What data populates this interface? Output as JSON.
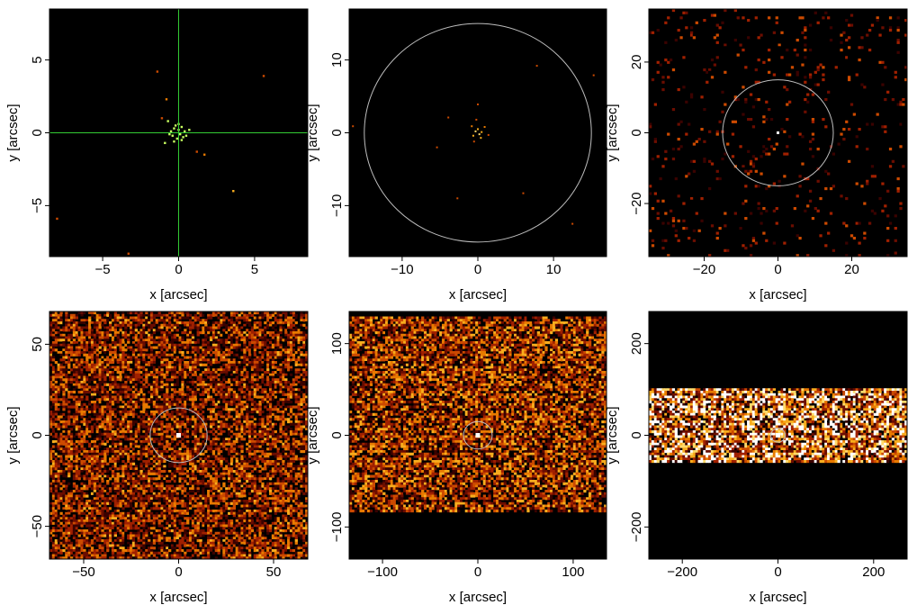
{
  "colors": {
    "background": "#000000",
    "ring": "#bdbdbd",
    "crosshair": "#33cc33",
    "colormap": [
      "#000000",
      "#3a0200",
      "#6b0d00",
      "#a02000",
      "#cc4a00",
      "#e87a00",
      "#f8ad1e",
      "#ffd96a",
      "#ffffff"
    ]
  },
  "chart_data": [
    {
      "type": "heatmap",
      "panel": "top-left",
      "xlabel": "x [arcsec]",
      "ylabel": "y [arcsec]",
      "xlim": [
        -8.5,
        8.5
      ],
      "ylim": [
        -8.5,
        8.5
      ],
      "xticks": [
        -5,
        0,
        5
      ],
      "yticks": [
        -5,
        0,
        5
      ],
      "xtick_labels": [
        "−5",
        "0",
        "5"
      ],
      "ytick_labels": [
        "−5",
        "0",
        "5"
      ],
      "overlay": "crosshair",
      "crosshair_center": [
        0,
        0
      ],
      "source_center": [
        0,
        0
      ],
      "events": [
        [
          -0.5,
          0.1,
          0.95
        ],
        [
          -0.4,
          -0.2,
          0.85
        ],
        [
          -0.3,
          0.3,
          0.9
        ],
        [
          -0.2,
          0.5,
          0.8
        ],
        [
          -0.1,
          -0.4,
          0.9
        ],
        [
          0.0,
          0.2,
          1.0
        ],
        [
          0.1,
          -0.1,
          0.95
        ],
        [
          0.2,
          0.4,
          0.85
        ],
        [
          0.3,
          -0.3,
          0.9
        ],
        [
          0.4,
          0.1,
          0.9
        ],
        [
          0.5,
          -0.2,
          0.8
        ],
        [
          0.2,
          -0.5,
          0.75
        ],
        [
          -0.6,
          -0.1,
          0.7
        ],
        [
          0.7,
          0.2,
          0.7
        ],
        [
          -0.3,
          -0.6,
          0.7
        ],
        [
          0.0,
          0.6,
          0.75
        ],
        [
          -0.8,
          2.3,
          0.6
        ],
        [
          1.7,
          -1.5,
          0.6
        ],
        [
          -1.1,
          1.0,
          0.55
        ],
        [
          3.6,
          -4.0,
          0.7
        ],
        [
          5.6,
          3.9,
          0.5
        ],
        [
          -1.4,
          4.2,
          0.5
        ],
        [
          -8.0,
          -5.9,
          0.5
        ],
        [
          -3.3,
          -8.3,
          0.5
        ],
        [
          -0.9,
          -0.7,
          0.6
        ],
        [
          1.2,
          -1.3,
          0.5
        ],
        [
          -0.7,
          0.8,
          0.55
        ]
      ]
    },
    {
      "type": "heatmap",
      "panel": "top-middle",
      "xlabel": "x [arcsec]",
      "ylabel": "y [arcsec]",
      "xlim": [
        -17,
        17
      ],
      "ylim": [
        -17,
        17
      ],
      "xticks": [
        -10,
        0,
        10
      ],
      "yticks": [
        -10,
        0,
        10
      ],
      "xtick_labels": [
        "−10",
        "0",
        "10"
      ],
      "ytick_labels": [
        "−10",
        "0",
        "10"
      ],
      "overlay": "circle",
      "circle_radius": 15,
      "source_center": [
        0,
        0
      ],
      "events": [
        [
          -0.3,
          0.2,
          0.9
        ],
        [
          0.2,
          -0.2,
          0.85
        ],
        [
          0.0,
          0.5,
          0.8
        ],
        [
          0.5,
          0.1,
          0.8
        ],
        [
          -0.6,
          -0.4,
          0.7
        ],
        [
          0.4,
          -0.7,
          0.7
        ],
        [
          -0.8,
          0.9,
          0.6
        ],
        [
          0.9,
          0.8,
          0.6
        ],
        [
          -0.2,
          1.8,
          0.5
        ],
        [
          1.4,
          -0.3,
          0.5
        ],
        [
          -0.5,
          -1.2,
          0.55
        ],
        [
          0.0,
          3.9,
          0.5
        ],
        [
          -5.4,
          -2.0,
          0.5
        ],
        [
          -2.7,
          -9.0,
          0.5
        ],
        [
          6.0,
          -8.3,
          0.45
        ],
        [
          7.8,
          9.2,
          0.45
        ],
        [
          -16.5,
          0.9,
          0.5
        ],
        [
          15.3,
          7.9,
          0.45
        ],
        [
          -3.9,
          2.1,
          0.45
        ],
        [
          12.5,
          -12.5,
          0.45
        ]
      ]
    },
    {
      "type": "heatmap",
      "panel": "top-right",
      "xlabel": "x [arcsec]",
      "ylabel": "y [arcsec]",
      "xlim": [
        -35,
        35
      ],
      "ylim": [
        -35,
        35
      ],
      "xticks": [
        -20,
        0,
        20
      ],
      "yticks": [
        -20,
        0,
        20
      ],
      "xtick_labels": [
        "−20",
        "0",
        "20"
      ],
      "ytick_labels": [
        "−20",
        "0",
        "20"
      ],
      "overlay": "circle",
      "circle_radius": 15,
      "source_center": [
        0,
        0
      ],
      "background_density": 0.06,
      "background_brightness": 0.35
    },
    {
      "type": "heatmap",
      "panel": "bottom-left",
      "xlabel": "x [arcsec]",
      "ylabel": "y [arcsec]",
      "xlim": [
        -68,
        68
      ],
      "ylim": [
        -68,
        68
      ],
      "xticks": [
        -50,
        0,
        50
      ],
      "yticks": [
        -50,
        0,
        50
      ],
      "xtick_labels": [
        "−50",
        "0",
        "50"
      ],
      "ytick_labels": [
        "−50",
        "0",
        "50"
      ],
      "overlay": "circle",
      "circle_radius": 15,
      "source_center": [
        0,
        0
      ],
      "background_density": 0.75,
      "background_brightness": 0.45,
      "band": [
        -68,
        68
      ]
    },
    {
      "type": "heatmap",
      "panel": "bottom-middle",
      "xlabel": "x [arcsec]",
      "ylabel": "y [arcsec]",
      "xlim": [
        -135,
        135
      ],
      "ylim": [
        -135,
        135
      ],
      "xticks": [
        -100,
        0,
        100
      ],
      "yticks": [
        -100,
        0,
        100
      ],
      "xtick_labels": [
        "−100",
        "0",
        "100"
      ],
      "ytick_labels": [
        "−100",
        "0",
        "100"
      ],
      "overlay": "circle",
      "circle_radius": 15,
      "source_center": [
        0,
        0
      ],
      "background_density": 0.8,
      "background_brightness": 0.5,
      "band": [
        -85,
        130
      ]
    },
    {
      "type": "heatmap",
      "panel": "bottom-right",
      "xlabel": "x [arcsec]",
      "ylabel": "y [arcsec]",
      "xlim": [
        -270,
        270
      ],
      "ylim": [
        -270,
        270
      ],
      "xticks": [
        -200,
        0,
        200
      ],
      "yticks": [
        -200,
        0,
        200
      ],
      "xtick_labels": [
        "−200",
        "0",
        "200"
      ],
      "ytick_labels": [
        "−200",
        "0",
        "200"
      ],
      "overlay": "circle",
      "circle_radius": 15,
      "source_center": [
        0,
        0
      ],
      "background_density": 0.9,
      "background_brightness": 0.75,
      "band": [
        -60,
        100
      ]
    }
  ]
}
